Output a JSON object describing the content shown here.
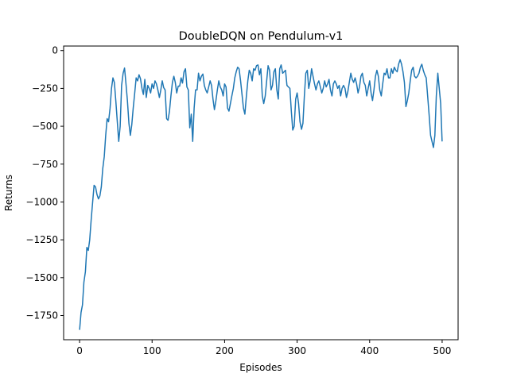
{
  "chart_data": {
    "type": "line",
    "title": "DoubleDQN on Pendulum-v1",
    "xlabel": "Episodes",
    "ylabel": "Returns",
    "xlim": [
      -22,
      522
    ],
    "ylim": [
      -1910,
      30
    ],
    "xticks": [
      0,
      100,
      200,
      300,
      400,
      500
    ],
    "yticks": [
      0,
      -250,
      -500,
      -750,
      -1000,
      -1250,
      -1500,
      -1750
    ],
    "ytick_labels": [
      "0",
      "−250",
      "−500",
      "−750",
      "−1000",
      "−1250",
      "−1500",
      "−1750"
    ],
    "grid": false,
    "series": [
      {
        "color": "#1f77b4",
        "points": [
          [
            0,
            -1845
          ],
          [
            2,
            -1730
          ],
          [
            4,
            -1680
          ],
          [
            6,
            -1530
          ],
          [
            8,
            -1460
          ],
          [
            10,
            -1300
          ],
          [
            12,
            -1320
          ],
          [
            14,
            -1250
          ],
          [
            16,
            -1120
          ],
          [
            18,
            -1000
          ],
          [
            20,
            -890
          ],
          [
            22,
            -900
          ],
          [
            24,
            -950
          ],
          [
            26,
            -980
          ],
          [
            28,
            -960
          ],
          [
            30,
            -900
          ],
          [
            32,
            -780
          ],
          [
            34,
            -700
          ],
          [
            36,
            -560
          ],
          [
            38,
            -450
          ],
          [
            40,
            -470
          ],
          [
            42,
            -380
          ],
          [
            44,
            -250
          ],
          [
            46,
            -180
          ],
          [
            48,
            -210
          ],
          [
            50,
            -330
          ],
          [
            52,
            -470
          ],
          [
            54,
            -600
          ],
          [
            56,
            -500
          ],
          [
            58,
            -230
          ],
          [
            60,
            -150
          ],
          [
            62,
            -115
          ],
          [
            64,
            -220
          ],
          [
            66,
            -330
          ],
          [
            68,
            -480
          ],
          [
            70,
            -560
          ],
          [
            72,
            -490
          ],
          [
            74,
            -380
          ],
          [
            76,
            -280
          ],
          [
            78,
            -180
          ],
          [
            80,
            -200
          ],
          [
            82,
            -160
          ],
          [
            84,
            -185
          ],
          [
            86,
            -250
          ],
          [
            88,
            -290
          ],
          [
            90,
            -190
          ],
          [
            92,
            -310
          ],
          [
            94,
            -230
          ],
          [
            96,
            -250
          ],
          [
            98,
            -280
          ],
          [
            100,
            -220
          ],
          [
            102,
            -250
          ],
          [
            104,
            -200
          ],
          [
            106,
            -220
          ],
          [
            108,
            -260
          ],
          [
            110,
            -310
          ],
          [
            112,
            -260
          ],
          [
            114,
            -200
          ],
          [
            116,
            -245
          ],
          [
            118,
            -260
          ],
          [
            120,
            -450
          ],
          [
            122,
            -460
          ],
          [
            124,
            -400
          ],
          [
            126,
            -300
          ],
          [
            128,
            -210
          ],
          [
            130,
            -170
          ],
          [
            132,
            -210
          ],
          [
            134,
            -280
          ],
          [
            136,
            -235
          ],
          [
            138,
            -235
          ],
          [
            140,
            -180
          ],
          [
            142,
            -215
          ],
          [
            144,
            -140
          ],
          [
            146,
            -120
          ],
          [
            148,
            -240
          ],
          [
            150,
            -260
          ],
          [
            152,
            -510
          ],
          [
            154,
            -420
          ],
          [
            156,
            -600
          ],
          [
            158,
            -380
          ],
          [
            160,
            -260
          ],
          [
            162,
            -260
          ],
          [
            164,
            -150
          ],
          [
            166,
            -200
          ],
          [
            168,
            -170
          ],
          [
            170,
            -155
          ],
          [
            172,
            -230
          ],
          [
            174,
            -260
          ],
          [
            176,
            -280
          ],
          [
            178,
            -240
          ],
          [
            180,
            -200
          ],
          [
            182,
            -230
          ],
          [
            184,
            -320
          ],
          [
            186,
            -390
          ],
          [
            188,
            -330
          ],
          [
            190,
            -260
          ],
          [
            192,
            -200
          ],
          [
            194,
            -240
          ],
          [
            196,
            -260
          ],
          [
            198,
            -300
          ],
          [
            200,
            -220
          ],
          [
            202,
            -240
          ],
          [
            204,
            -380
          ],
          [
            206,
            -400
          ],
          [
            208,
            -350
          ],
          [
            210,
            -300
          ],
          [
            212,
            -250
          ],
          [
            214,
            -180
          ],
          [
            216,
            -140
          ],
          [
            218,
            -110
          ],
          [
            220,
            -120
          ],
          [
            222,
            -200
          ],
          [
            224,
            -290
          ],
          [
            226,
            -380
          ],
          [
            228,
            -420
          ],
          [
            230,
            -300
          ],
          [
            232,
            -200
          ],
          [
            234,
            -130
          ],
          [
            236,
            -150
          ],
          [
            238,
            -200
          ],
          [
            240,
            -120
          ],
          [
            242,
            -130
          ],
          [
            244,
            -100
          ],
          [
            246,
            -95
          ],
          [
            248,
            -160
          ],
          [
            250,
            -120
          ],
          [
            252,
            -300
          ],
          [
            254,
            -350
          ],
          [
            256,
            -300
          ],
          [
            258,
            -200
          ],
          [
            260,
            -100
          ],
          [
            262,
            -130
          ],
          [
            264,
            -260
          ],
          [
            266,
            -230
          ],
          [
            268,
            -140
          ],
          [
            270,
            -120
          ],
          [
            272,
            -260
          ],
          [
            274,
            -320
          ],
          [
            276,
            -120
          ],
          [
            278,
            -95
          ],
          [
            280,
            -150
          ],
          [
            282,
            -140
          ],
          [
            284,
            -130
          ],
          [
            286,
            -230
          ],
          [
            288,
            -240
          ],
          [
            290,
            -250
          ],
          [
            292,
            -400
          ],
          [
            294,
            -525
          ],
          [
            296,
            -500
          ],
          [
            298,
            -320
          ],
          [
            300,
            -280
          ],
          [
            302,
            -350
          ],
          [
            304,
            -470
          ],
          [
            306,
            -520
          ],
          [
            308,
            -480
          ],
          [
            310,
            -300
          ],
          [
            312,
            -150
          ],
          [
            314,
            -130
          ],
          [
            316,
            -250
          ],
          [
            318,
            -200
          ],
          [
            320,
            -120
          ],
          [
            322,
            -170
          ],
          [
            324,
            -220
          ],
          [
            326,
            -260
          ],
          [
            328,
            -220
          ],
          [
            330,
            -200
          ],
          [
            332,
            -240
          ],
          [
            334,
            -280
          ],
          [
            336,
            -250
          ],
          [
            338,
            -200
          ],
          [
            340,
            -240
          ],
          [
            342,
            -220
          ],
          [
            344,
            -190
          ],
          [
            346,
            -260
          ],
          [
            348,
            -300
          ],
          [
            350,
            -220
          ],
          [
            352,
            -200
          ],
          [
            354,
            -220
          ],
          [
            356,
            -250
          ],
          [
            358,
            -230
          ],
          [
            360,
            -300
          ],
          [
            362,
            -250
          ],
          [
            364,
            -230
          ],
          [
            366,
            -250
          ],
          [
            368,
            -310
          ],
          [
            370,
            -270
          ],
          [
            372,
            -210
          ],
          [
            374,
            -150
          ],
          [
            376,
            -190
          ],
          [
            378,
            -210
          ],
          [
            380,
            -180
          ],
          [
            382,
            -220
          ],
          [
            384,
            -280
          ],
          [
            386,
            -240
          ],
          [
            388,
            -170
          ],
          [
            390,
            -150
          ],
          [
            392,
            -210
          ],
          [
            394,
            -230
          ],
          [
            396,
            -300
          ],
          [
            398,
            -250
          ],
          [
            400,
            -200
          ],
          [
            402,
            -280
          ],
          [
            404,
            -330
          ],
          [
            406,
            -260
          ],
          [
            408,
            -170
          ],
          [
            410,
            -130
          ],
          [
            412,
            -170
          ],
          [
            414,
            -260
          ],
          [
            416,
            -300
          ],
          [
            418,
            -220
          ],
          [
            420,
            -150
          ],
          [
            422,
            -160
          ],
          [
            424,
            -120
          ],
          [
            426,
            -180
          ],
          [
            428,
            -180
          ],
          [
            430,
            -120
          ],
          [
            432,
            -150
          ],
          [
            434,
            -110
          ],
          [
            436,
            -130
          ],
          [
            438,
            -140
          ],
          [
            440,
            -90
          ],
          [
            442,
            -60
          ],
          [
            444,
            -90
          ],
          [
            446,
            -140
          ],
          [
            448,
            -210
          ],
          [
            450,
            -370
          ],
          [
            452,
            -330
          ],
          [
            454,
            -280
          ],
          [
            456,
            -200
          ],
          [
            458,
            -130
          ],
          [
            460,
            -110
          ],
          [
            462,
            -170
          ],
          [
            464,
            -180
          ],
          [
            466,
            -170
          ],
          [
            468,
            -150
          ],
          [
            470,
            -110
          ],
          [
            472,
            -90
          ],
          [
            474,
            -130
          ],
          [
            476,
            -160
          ],
          [
            478,
            -180
          ],
          [
            480,
            -300
          ],
          [
            482,
            -420
          ],
          [
            484,
            -560
          ],
          [
            486,
            -600
          ],
          [
            488,
            -640
          ],
          [
            490,
            -560
          ],
          [
            492,
            -300
          ],
          [
            494,
            -150
          ],
          [
            496,
            -250
          ],
          [
            498,
            -350
          ],
          [
            500,
            -600
          ]
        ]
      }
    ]
  }
}
